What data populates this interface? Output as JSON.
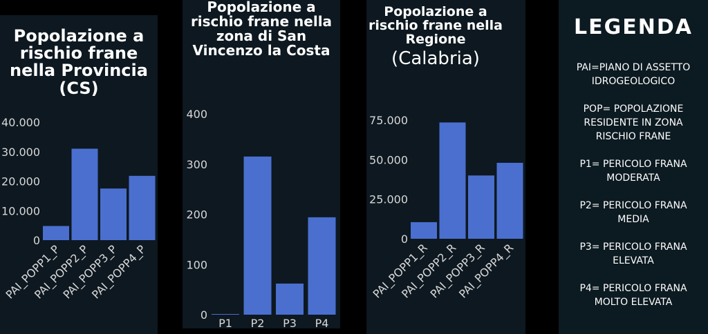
{
  "charts": [
    {
      "title": "Popolazione a rischio frane nella Provincia",
      "subtitle": "(CS)"
    },
    {
      "title": "Popolazione a rischio frane nella zona di San Vincenzo la Costa"
    },
    {
      "title": "Popolazione a rischio frane nella Regione",
      "subtitle": "(Calabria)"
    }
  ],
  "chart_data": [
    {
      "type": "bar",
      "categories": [
        "PAI_POPP1_P",
        "PAI_POPP2_P",
        "PAI_POPP3_P",
        "PAI_POPP4_P"
      ],
      "values": [
        4800,
        31000,
        17500,
        21800
      ],
      "ylim": [
        0,
        40000
      ],
      "yticks": [
        0,
        10000,
        20000,
        30000,
        40000
      ],
      "yticklabels": [
        "0",
        "10.000",
        "20.000",
        "30.000",
        "40.000"
      ],
      "grid": false
    },
    {
      "type": "bar",
      "categories": [
        "P1",
        "P2",
        "P3",
        "P4"
      ],
      "values": [
        1,
        315,
        62,
        194
      ],
      "ylim": [
        0,
        400
      ],
      "yticks": [
        0,
        100,
        200,
        300,
        400
      ],
      "yticklabels": [
        "0",
        "100",
        "200",
        "300",
        "400"
      ],
      "grid": false
    },
    {
      "type": "bar",
      "categories": [
        "PAI_POPP1_R",
        "PAI_POPP2_R",
        "PAI_POPP3_R",
        "PAI_POPP4_R"
      ],
      "values": [
        10500,
        73500,
        40000,
        48000
      ],
      "ylim": [
        0,
        75000
      ],
      "yticks": [
        0,
        25000,
        50000,
        75000
      ],
      "yticklabels": [
        "0",
        "25.000",
        "50.000",
        "75.000"
      ],
      "grid": false
    }
  ],
  "legend": {
    "title": "LEGENDA",
    "items": [
      "PAI=PIANO DI ASSETTO IDROGEOLOGICO",
      "POP= POPOLAZIONE RESIDENTE IN ZONA RISCHIO FRANE",
      "P1= PERICOLO FRANA MODERATA",
      "P2= PERICOLO FRANA MEDIA",
      "P3= PERICOLO FRANA ELEVATA",
      "P4= PERICOLO FRANA MOLTO ELEVATA"
    ]
  },
  "colors": {
    "bar": "#4a6fcf",
    "panel": "#0d1820",
    "text": "#ffffff",
    "tick": "#d8d8d8"
  }
}
